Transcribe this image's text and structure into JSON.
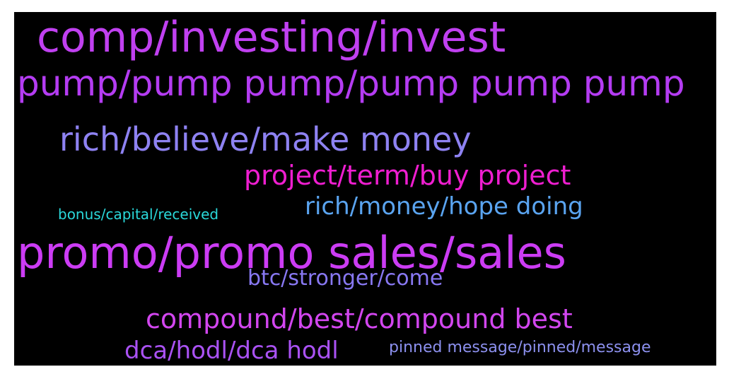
{
  "wordcloud": {
    "background": "#000000",
    "words": [
      {
        "text": "comp/investing/invest",
        "color": "#c040f0"
      },
      {
        "text": "pump/pump pump/pump pump pump",
        "color": "#b43cf2"
      },
      {
        "text": "rich/believe/make money",
        "color": "#8e82f2"
      },
      {
        "text": "project/term/buy project",
        "color": "#ef1ed0"
      },
      {
        "text": "bonus/capital/received",
        "color": "#2ad8da"
      },
      {
        "text": "rich/money/hope doing",
        "color": "#5aa4f0"
      },
      {
        "text": "promo/promo sales/sales",
        "color": "#cc3cf4"
      },
      {
        "text": "btc/stronger/come",
        "color": "#8878f2"
      },
      {
        "text": "compound/best/compound best",
        "color": "#d246ef"
      },
      {
        "text": "dca/hodl/dca hodl",
        "color": "#aa52f4"
      },
      {
        "text": "pinned message/pinned/message",
        "color": "#8c90ee"
      }
    ]
  }
}
